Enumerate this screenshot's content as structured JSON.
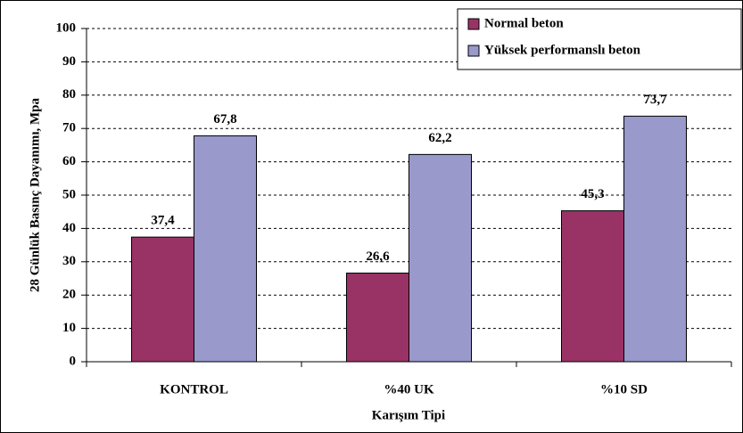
{
  "chart_data": {
    "type": "bar",
    "y_axis_label": "28 Günlük Basınç Dayanımı, Mpa",
    "x_axis_label": "Karışım Tipi",
    "categories": [
      "KONTROL",
      "%40 UK",
      "%10 SD"
    ],
    "series": [
      {
        "name": "Normal beton",
        "color": "#993366",
        "values": [
          37.4,
          26.6,
          45.3
        ],
        "value_labels": [
          "37,4",
          "26,6",
          "45,3"
        ]
      },
      {
        "name": "Yüksek performanslı beton",
        "color": "#9999cc",
        "values": [
          67.8,
          62.2,
          73.7
        ],
        "value_labels": [
          "67,8",
          "62,2",
          "73,7"
        ]
      }
    ],
    "ylim": [
      0,
      100
    ],
    "yticks": [
      0,
      10,
      20,
      30,
      40,
      50,
      60,
      70,
      80,
      90,
      100
    ],
    "grid": true,
    "legend": "top-right"
  }
}
